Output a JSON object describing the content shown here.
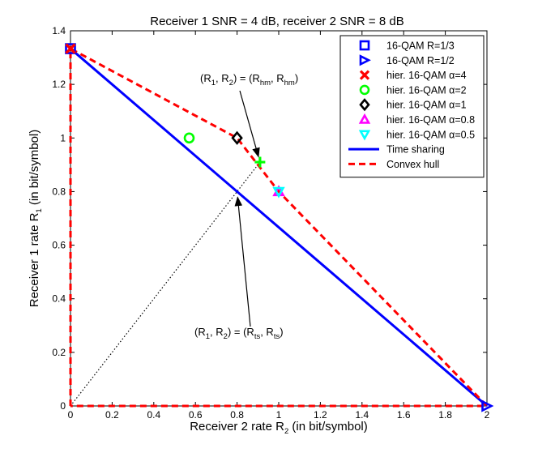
{
  "chart_data": {
    "type": "scatter",
    "title": "Receiver 1 SNR = 4 dB, receiver 2 SNR = 8 dB",
    "xlabel": {
      "main": "Receiver 2 rate R",
      "sub": "2",
      "tail": " (in bit/symbol)"
    },
    "ylabel": {
      "main": "Receiver 1 rate R",
      "sub": "1",
      "tail": " (in bit/symbol)"
    },
    "xlim": [
      0,
      2
    ],
    "ylim": [
      0,
      1.4
    ],
    "xticks": [
      "0",
      "0.2",
      "0.4",
      "0.6",
      "0.8",
      "1",
      "1.2",
      "1.4",
      "1.6",
      "1.8",
      "2"
    ],
    "yticks": [
      "0",
      "0.2",
      "0.4",
      "0.6",
      "0.8",
      "1",
      "1.2",
      "1.4"
    ],
    "grid": false,
    "legend_position": "top-right",
    "series": [
      {
        "name": "16-QAM R=1/3",
        "marker": "square",
        "color": "#0000ff",
        "points": [
          [
            0,
            1.3333
          ]
        ]
      },
      {
        "name": "16-QAM R=1/2",
        "marker": "triangle-right",
        "color": "#0000ff",
        "points": [
          [
            2,
            0
          ]
        ]
      },
      {
        "name": "hier. 16-QAM α=4",
        "marker": "x",
        "color": "#ff0000",
        "points": [
          [
            0,
            1.3333
          ]
        ]
      },
      {
        "name": "hier. 16-QAM α=2",
        "marker": "circle",
        "color": "#00ff00",
        "points": [
          [
            0.57,
            1.0
          ]
        ]
      },
      {
        "name": "hier. 16-QAM α=1",
        "marker": "diamond",
        "color": "#000000",
        "points": [
          [
            0.8,
            1.0
          ]
        ]
      },
      {
        "name": "hier. 16-QAM α=0.8",
        "marker": "triangle-up",
        "color": "#ff00ff",
        "points": [
          [
            1.0,
            0.8
          ]
        ]
      },
      {
        "name": "hier. 16-QAM α=0.5",
        "marker": "triangle-down",
        "color": "#00ffff",
        "points": [
          [
            1.0,
            0.8
          ]
        ]
      },
      {
        "name": "Time sharing",
        "line": "solid",
        "color": "#0000ff",
        "points": [
          [
            0,
            1.3333
          ],
          [
            2,
            0
          ]
        ]
      },
      {
        "name": "Convex hull",
        "line": "dashed",
        "color": "#ff0000",
        "points": [
          [
            0,
            0
          ],
          [
            0,
            1.3333
          ],
          [
            0.8,
            1.0
          ],
          [
            1.0,
            0.8
          ],
          [
            2,
            0
          ],
          [
            0,
            0
          ]
        ]
      }
    ],
    "extra_lines": [
      {
        "name": "equal-rate line",
        "line": "dotted",
        "color": "#000000",
        "points": [
          [
            0,
            0
          ],
          [
            0.91,
            0.91
          ]
        ]
      }
    ],
    "extra_markers": [
      {
        "name": "hm point",
        "marker": "plus",
        "color": "#00ff00",
        "points": [
          [
            0.91,
            0.91
          ]
        ]
      }
    ],
    "annotations": [
      {
        "id": "hm",
        "pieces": [
          [
            "(R",
            ""
          ],
          [
            "1",
            "sub"
          ],
          [
            ", R",
            ""
          ],
          [
            "2",
            "sub"
          ],
          [
            ") = (R",
            ""
          ],
          [
            "hm",
            "sub"
          ],
          [
            ", R",
            ""
          ],
          [
            "hm",
            "sub"
          ],
          [
            ")",
            ""
          ]
        ],
        "target": [
          0.91,
          0.91
        ]
      },
      {
        "id": "ts",
        "pieces": [
          [
            "(R",
            ""
          ],
          [
            "1",
            "sub"
          ],
          [
            ", R",
            ""
          ],
          [
            "2",
            "sub"
          ],
          [
            ") = (R",
            ""
          ],
          [
            "ts",
            "sub"
          ],
          [
            ", R",
            ""
          ],
          [
            "ts",
            "sub"
          ],
          [
            ")",
            ""
          ]
        ],
        "target": [
          0.8,
          0.8
        ]
      }
    ]
  }
}
